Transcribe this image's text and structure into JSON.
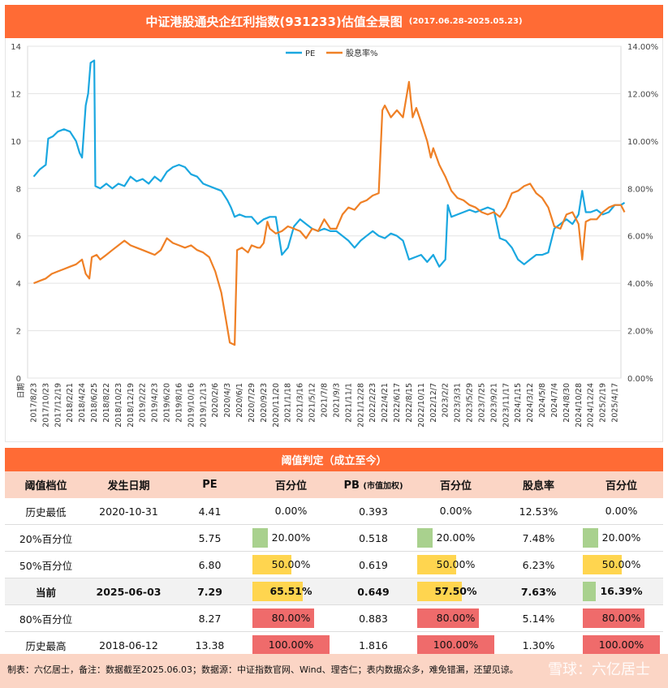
{
  "title": {
    "main": "中证港股通央企红利指数(931233)估值全景图",
    "sub": "(2017.06.28-2025.05.23)"
  },
  "colors": {
    "pe": "#1aa7e0",
    "yield": "#ef8026",
    "brand": "#ff6b35",
    "header_bg": "#fbd5c5",
    "green": "#a9d18e",
    "yellow": "#ffd54f",
    "red": "#ef6b6b"
  },
  "chart_data": {
    "type": "line",
    "legend": [
      "PE",
      "股息率%"
    ],
    "legend_position": "top-center",
    "left_axis": {
      "ticks": [
        "0",
        "2",
        "4",
        "6",
        "8",
        "10",
        "12",
        "14"
      ],
      "ylim": [
        0,
        14
      ]
    },
    "right_axis": {
      "ticks": [
        "0.00%",
        "2.00%",
        "4.00%",
        "6.00%",
        "8.00%",
        "10.00%",
        "12.00%",
        "14.00%"
      ],
      "ylim": [
        0,
        14
      ]
    },
    "x_first_label": "日期",
    "x_labels": [
      "2017/8/23",
      "2017/10/23",
      "2017/12/19",
      "2018/2/21",
      "2018/4/24",
      "2018/6/25",
      "2018/8/22",
      "2018/10/23",
      "2018/12/19",
      "2019/2/22",
      "2019/4/23",
      "2019/6/20",
      "2019/8/16",
      "2019/10/16",
      "2019/12/13",
      "2020/2/6",
      "2020/4/3",
      "2020/6/1",
      "2020/7/29",
      "2020/9/23",
      "2020/11/20",
      "2021/1/18",
      "2021/3/16",
      "2021/5/12",
      "2021/7/8",
      "2021/9/3",
      "2021/11/1",
      "2021/12/28",
      "2022/2/23",
      "2022/4/21",
      "2022/6/17",
      "2022/8/15",
      "2022/10/11",
      "2022/12/7",
      "2023/2/2",
      "2023/3/31",
      "2023/5/29",
      "2023/7/25",
      "2023/9/21",
      "2023/11/17",
      "2024/1/15",
      "2024/3/12",
      "2024/5/8",
      "2024/7/4",
      "2024/8/30",
      "2024/10/28",
      "2024/12/24",
      "2025/2/19",
      "2025/4/17"
    ],
    "series": [
      {
        "name": "PE",
        "axis": "left",
        "points": [
          [
            0,
            8.5
          ],
          [
            0.5,
            8.8
          ],
          [
            1.0,
            9.0
          ],
          [
            1.2,
            10.1
          ],
          [
            1.6,
            10.2
          ],
          [
            2.0,
            10.4
          ],
          [
            2.5,
            10.5
          ],
          [
            3.0,
            10.4
          ],
          [
            3.5,
            10.0
          ],
          [
            3.8,
            9.5
          ],
          [
            4.0,
            9.3
          ],
          [
            4.3,
            11.5
          ],
          [
            4.5,
            12.0
          ],
          [
            4.7,
            13.3
          ],
          [
            5.0,
            13.4
          ],
          [
            5.1,
            8.1
          ],
          [
            5.5,
            8.0
          ],
          [
            6.0,
            8.2
          ],
          [
            6.5,
            8.0
          ],
          [
            7.0,
            8.2
          ],
          [
            7.5,
            8.1
          ],
          [
            8.0,
            8.5
          ],
          [
            8.5,
            8.3
          ],
          [
            9.0,
            8.4
          ],
          [
            9.5,
            8.2
          ],
          [
            10.0,
            8.5
          ],
          [
            10.5,
            8.3
          ],
          [
            11.0,
            8.7
          ],
          [
            11.5,
            8.9
          ],
          [
            12.0,
            9.0
          ],
          [
            12.5,
            8.9
          ],
          [
            13.0,
            8.6
          ],
          [
            13.5,
            8.5
          ],
          [
            14.0,
            8.2
          ],
          [
            14.5,
            8.1
          ],
          [
            15.0,
            8.0
          ],
          [
            15.5,
            7.9
          ],
          [
            16.0,
            7.5
          ],
          [
            16.3,
            7.2
          ],
          [
            16.6,
            6.8
          ],
          [
            17.0,
            6.9
          ],
          [
            17.5,
            6.8
          ],
          [
            18.0,
            6.8
          ],
          [
            18.5,
            6.5
          ],
          [
            19.0,
            6.7
          ],
          [
            19.5,
            6.8
          ],
          [
            20.0,
            6.8
          ],
          [
            20.5,
            5.2
          ],
          [
            21.0,
            5.5
          ],
          [
            21.5,
            6.4
          ],
          [
            22.0,
            6.7
          ],
          [
            22.5,
            6.5
          ],
          [
            23.0,
            6.3
          ],
          [
            23.5,
            6.2
          ],
          [
            24.0,
            6.3
          ],
          [
            24.5,
            6.2
          ],
          [
            25.0,
            6.2
          ],
          [
            25.5,
            6.0
          ],
          [
            26.0,
            5.8
          ],
          [
            26.5,
            5.5
          ],
          [
            27.0,
            5.8
          ],
          [
            27.5,
            6.0
          ],
          [
            28.0,
            6.2
          ],
          [
            28.5,
            6.0
          ],
          [
            29.0,
            5.9
          ],
          [
            29.5,
            6.1
          ],
          [
            30.0,
            6.0
          ],
          [
            30.5,
            5.8
          ],
          [
            31.0,
            5.0
          ],
          [
            31.5,
            5.1
          ],
          [
            32.0,
            5.2
          ],
          [
            32.5,
            4.9
          ],
          [
            33.0,
            5.2
          ],
          [
            33.5,
            4.7
          ],
          [
            34.0,
            5.0
          ],
          [
            34.2,
            7.3
          ],
          [
            34.5,
            6.8
          ],
          [
            35.0,
            6.9
          ],
          [
            35.5,
            7.0
          ],
          [
            36.0,
            7.1
          ],
          [
            36.5,
            7.0
          ],
          [
            37.0,
            7.1
          ],
          [
            37.5,
            7.2
          ],
          [
            38.0,
            7.1
          ],
          [
            38.5,
            5.9
          ],
          [
            39.0,
            5.8
          ],
          [
            39.5,
            5.5
          ],
          [
            40.0,
            5.0
          ],
          [
            40.5,
            4.8
          ],
          [
            41.0,
            5.0
          ],
          [
            41.5,
            5.2
          ],
          [
            42.0,
            5.2
          ],
          [
            42.5,
            5.3
          ],
          [
            43.0,
            6.3
          ],
          [
            43.5,
            6.5
          ],
          [
            44.0,
            6.7
          ],
          [
            44.5,
            6.5
          ],
          [
            45.0,
            6.9
          ],
          [
            45.3,
            7.9
          ],
          [
            45.6,
            7.0
          ],
          [
            46.0,
            7.0
          ],
          [
            46.5,
            7.1
          ],
          [
            47.0,
            6.9
          ],
          [
            47.5,
            7.0
          ],
          [
            48.0,
            7.3
          ],
          [
            48.5,
            7.3
          ],
          [
            48.8,
            7.4
          ]
        ]
      },
      {
        "name": "股息率%",
        "axis": "right",
        "points": [
          [
            0,
            4.0
          ],
          [
            0.5,
            4.1
          ],
          [
            1.0,
            4.2
          ],
          [
            1.5,
            4.4
          ],
          [
            2.0,
            4.5
          ],
          [
            2.5,
            4.6
          ],
          [
            3.0,
            4.7
          ],
          [
            3.5,
            4.8
          ],
          [
            4.0,
            5.0
          ],
          [
            4.3,
            4.4
          ],
          [
            4.6,
            4.2
          ],
          [
            4.8,
            5.1
          ],
          [
            5.2,
            5.2
          ],
          [
            5.5,
            5.0
          ],
          [
            6.0,
            5.2
          ],
          [
            6.5,
            5.4
          ],
          [
            7.0,
            5.6
          ],
          [
            7.5,
            5.8
          ],
          [
            8.0,
            5.6
          ],
          [
            8.5,
            5.5
          ],
          [
            9.0,
            5.4
          ],
          [
            9.5,
            5.3
          ],
          [
            10.0,
            5.2
          ],
          [
            10.5,
            5.4
          ],
          [
            11.0,
            5.9
          ],
          [
            11.5,
            5.7
          ],
          [
            12.0,
            5.6
          ],
          [
            12.5,
            5.5
          ],
          [
            13.0,
            5.6
          ],
          [
            13.5,
            5.4
          ],
          [
            14.0,
            5.3
          ],
          [
            14.5,
            5.1
          ],
          [
            15.0,
            4.5
          ],
          [
            15.5,
            3.6
          ],
          [
            15.9,
            2.4
          ],
          [
            16.2,
            1.5
          ],
          [
            16.6,
            1.4
          ],
          [
            16.8,
            5.4
          ],
          [
            17.2,
            5.5
          ],
          [
            17.7,
            5.3
          ],
          [
            18.0,
            5.6
          ],
          [
            18.5,
            5.5
          ],
          [
            18.7,
            5.5
          ],
          [
            19.0,
            5.7
          ],
          [
            19.3,
            6.6
          ],
          [
            19.5,
            6.3
          ],
          [
            20.0,
            6.1
          ],
          [
            20.5,
            6.2
          ],
          [
            21.0,
            6.4
          ],
          [
            21.5,
            6.3
          ],
          [
            22.0,
            6.2
          ],
          [
            22.5,
            5.9
          ],
          [
            23.0,
            6.3
          ],
          [
            23.5,
            6.2
          ],
          [
            24.0,
            6.7
          ],
          [
            24.5,
            6.3
          ],
          [
            25.0,
            6.3
          ],
          [
            25.5,
            6.9
          ],
          [
            26.0,
            7.2
          ],
          [
            26.5,
            7.1
          ],
          [
            27.0,
            7.4
          ],
          [
            27.5,
            7.5
          ],
          [
            28.0,
            7.7
          ],
          [
            28.5,
            7.8
          ],
          [
            28.8,
            11.3
          ],
          [
            29.0,
            11.5
          ],
          [
            29.5,
            11.0
          ],
          [
            30.0,
            11.3
          ],
          [
            30.5,
            11.0
          ],
          [
            31.0,
            12.5
          ],
          [
            31.3,
            11.0
          ],
          [
            31.6,
            11.4
          ],
          [
            32.0,
            10.8
          ],
          [
            32.5,
            10.0
          ],
          [
            32.8,
            9.3
          ],
          [
            33.0,
            9.7
          ],
          [
            33.5,
            9.0
          ],
          [
            34.0,
            8.5
          ],
          [
            34.5,
            7.9
          ],
          [
            35.0,
            7.6
          ],
          [
            35.5,
            7.5
          ],
          [
            36.0,
            7.3
          ],
          [
            36.5,
            7.2
          ],
          [
            37.0,
            7.0
          ],
          [
            37.5,
            6.9
          ],
          [
            38.0,
            7.0
          ],
          [
            38.5,
            6.8
          ],
          [
            39.0,
            7.2
          ],
          [
            39.5,
            7.8
          ],
          [
            40.0,
            7.9
          ],
          [
            40.5,
            8.1
          ],
          [
            41.0,
            8.2
          ],
          [
            41.5,
            7.8
          ],
          [
            42.0,
            7.6
          ],
          [
            42.5,
            7.2
          ],
          [
            43.0,
            6.4
          ],
          [
            43.5,
            6.3
          ],
          [
            44.0,
            6.9
          ],
          [
            44.5,
            7.0
          ],
          [
            45.0,
            6.5
          ],
          [
            45.3,
            5.0
          ],
          [
            45.6,
            6.6
          ],
          [
            46.0,
            6.7
          ],
          [
            46.5,
            6.7
          ],
          [
            47.0,
            7.0
          ],
          [
            47.5,
            7.2
          ],
          [
            48.0,
            7.3
          ],
          [
            48.5,
            7.3
          ],
          [
            48.8,
            7.0
          ]
        ]
      }
    ]
  },
  "table": {
    "title": "阈值判定（成立至今）",
    "headers": {
      "level": "阈值档位",
      "date": "发生日期",
      "pe": "PE",
      "pe_pct": "百分位",
      "pb": "PB",
      "pb_note": "(市值加权)",
      "pb_pct": "百分位",
      "yield": "股息率",
      "yield_pct": "百分位"
    },
    "rows": [
      {
        "level": "历史最低",
        "date": "2020-10-31",
        "pe": "4.41",
        "pe_pct": "0.00%",
        "pe_frac": 0.0,
        "pe_color": "none",
        "pb": "0.393",
        "pb_pct": "0.00%",
        "pb_frac": 0.0,
        "pb_color": "none",
        "yield": "12.53%",
        "yield_pct": "0.00%",
        "yield_frac": 0.0,
        "yield_color": "none"
      },
      {
        "level": "20%百分位",
        "date": "",
        "pe": "5.75",
        "pe_pct": "20.00%",
        "pe_frac": 0.2,
        "pe_color": "green",
        "pb": "0.518",
        "pb_pct": "20.00%",
        "pb_frac": 0.2,
        "pb_color": "green",
        "yield": "7.48%",
        "yield_pct": "20.00%",
        "yield_frac": 0.2,
        "yield_color": "green"
      },
      {
        "level": "50%百分位",
        "date": "",
        "pe": "6.80",
        "pe_pct": "50.00%",
        "pe_frac": 0.5,
        "pe_color": "yellow",
        "pb": "0.619",
        "pb_pct": "50.00%",
        "pb_frac": 0.5,
        "pb_color": "yellow",
        "yield": "6.23%",
        "yield_pct": "50.00%",
        "yield_frac": 0.5,
        "yield_color": "yellow"
      },
      {
        "level": "当前",
        "date": "2025-06-03",
        "pe": "7.29",
        "pe_pct": "65.51%",
        "pe_frac": 0.6551,
        "pe_color": "yellow",
        "pb": "0.649",
        "pb_pct": "57.50%",
        "pb_frac": 0.575,
        "pb_color": "yellow",
        "yield": "7.63%",
        "yield_pct": "16.39%",
        "yield_frac": 0.1639,
        "yield_color": "green"
      },
      {
        "level": "80%百分位",
        "date": "",
        "pe": "8.27",
        "pe_pct": "80.00%",
        "pe_frac": 0.8,
        "pe_color": "red",
        "pb": "0.883",
        "pb_pct": "80.00%",
        "pb_frac": 0.8,
        "pb_color": "red",
        "yield": "5.14%",
        "yield_pct": "80.00%",
        "yield_frac": 0.8,
        "yield_color": "red"
      },
      {
        "level": "历史最高",
        "date": "2018-06-12",
        "pe": "13.38",
        "pe_pct": "100.00%",
        "pe_frac": 1.0,
        "pe_color": "red",
        "pb": "1.816",
        "pb_pct": "100.00%",
        "pb_frac": 1.0,
        "pb_color": "red",
        "yield": "1.30%",
        "yield_pct": "100.00%",
        "yield_frac": 1.0,
        "yield_color": "red"
      }
    ]
  },
  "footer": "制表：六亿居士，备注：数据截至2025.06.03；数据源：中证指数官网、Wind、理杏仁；表内数据众多，难免错漏，还望见谅。",
  "watermark": "雪球：六亿居士"
}
